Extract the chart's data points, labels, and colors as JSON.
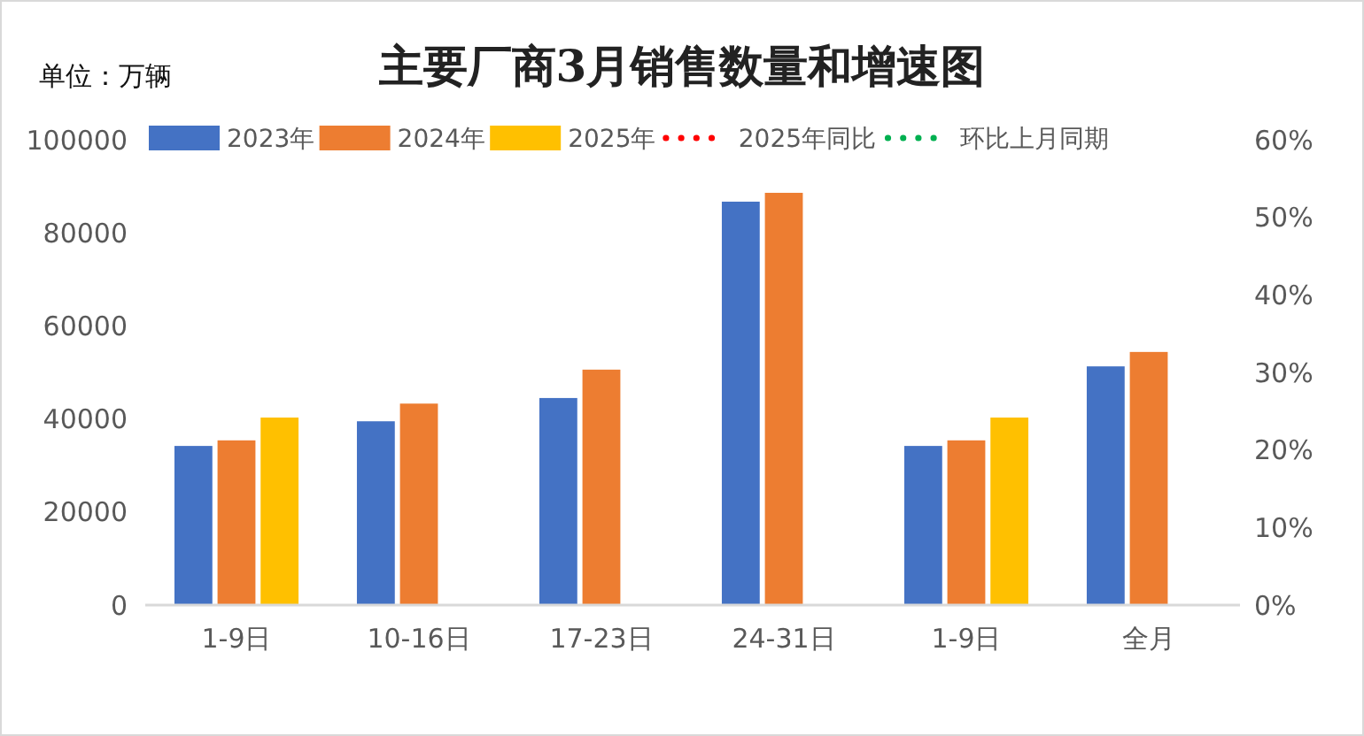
{
  "chart_data": {
    "type": "bar",
    "title": "主要厂商3月销售数量和增速图",
    "ylabel": "单位：万辆",
    "categories": [
      "1-9日",
      "10-16日",
      "17-23日",
      "24-31日",
      "1-9日",
      "全月"
    ],
    "series": [
      {
        "name": "2023年",
        "color": "#4472c4",
        "values": [
          34200,
          39500,
          44500,
          86700,
          34200,
          51300
        ]
      },
      {
        "name": "2024年",
        "color": "#ed7d31",
        "values": [
          35400,
          43300,
          50600,
          88600,
          35400,
          54400
        ]
      },
      {
        "name": "2025年",
        "color": "#ffc000",
        "values": [
          40300,
          null,
          null,
          null,
          40300,
          null
        ]
      },
      {
        "name": "2025年同比",
        "type": "line",
        "line_style": "dotted",
        "color": "#ff0000",
        "values": [
          null,
          null,
          null,
          null,
          null,
          null
        ]
      },
      {
        "name": "环比上月同期",
        "type": "line",
        "line_style": "dotted",
        "color": "#00b050",
        "values": [
          null,
          null,
          null,
          null,
          null,
          null
        ]
      }
    ],
    "ylim": [
      0,
      100000
    ],
    "yticks": [
      0,
      20000,
      40000,
      60000,
      80000,
      100000
    ],
    "y2lim": [
      0,
      60
    ],
    "y2ticks": [
      {
        "value": 0,
        "label": "0%"
      },
      {
        "value": 10,
        "label": "10%"
      },
      {
        "value": 20,
        "label": "20%"
      },
      {
        "value": 30,
        "label": "30%"
      },
      {
        "value": 40,
        "label": "40%"
      },
      {
        "value": 50,
        "label": "50%"
      },
      {
        "value": 60,
        "label": "60%"
      }
    ],
    "legend": "top"
  }
}
